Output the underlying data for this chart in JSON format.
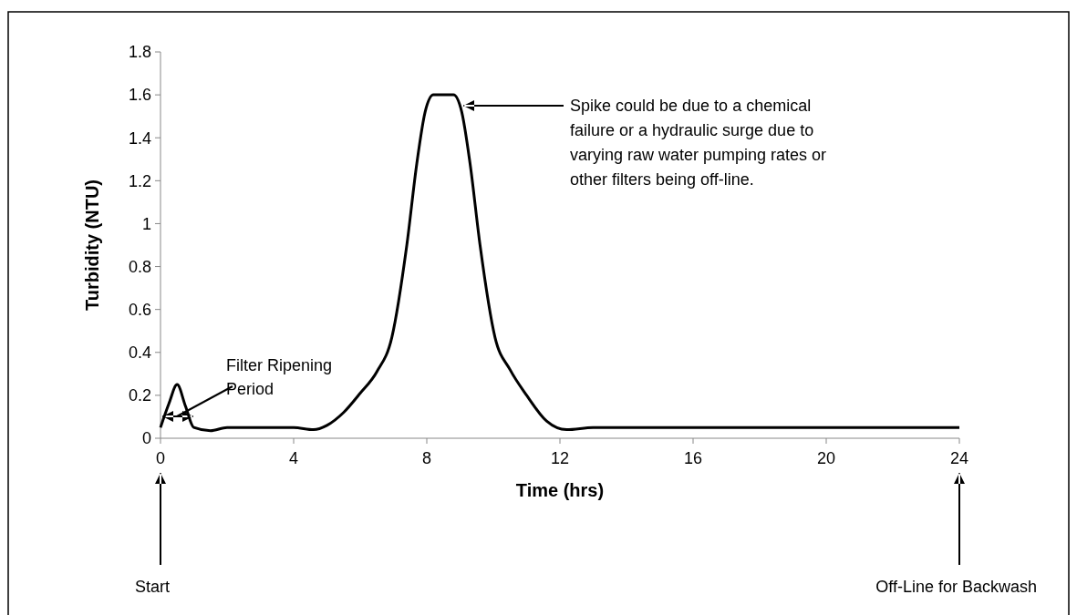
{
  "chart_data": {
    "type": "line",
    "xlabel": "Time (hrs)",
    "ylabel": "Turbidity (NTU)",
    "xlim": [
      0,
      24
    ],
    "xticks": [
      0,
      4,
      8,
      12,
      16,
      20,
      24
    ],
    "ylim": [
      0,
      1.8
    ],
    "yticks": [
      0,
      {
        "value": 0.2,
        "label": "0.2"
      },
      {
        "value": 0.4,
        "label": "0.4"
      },
      {
        "value": 0.6,
        "label": "0.6"
      },
      {
        "value": 0.8,
        "label": "0.8"
      },
      1,
      {
        "value": 1.2,
        "label": "1.2"
      },
      {
        "value": 1.4,
        "label": "1.4"
      },
      {
        "value": 1.6,
        "label": "1.6"
      },
      {
        "value": 1.8,
        "label": "1.8"
      }
    ],
    "grid": false,
    "marker": "none",
    "line_style": "solid",
    "series": [
      {
        "color": "#000000",
        "x": [
          0,
          0.25,
          0.5,
          0.75,
          1,
          1.5,
          2,
          3,
          4,
          4.6,
          5,
          5.5,
          6,
          6.5,
          6.95,
          7.4,
          7.7,
          7.95,
          8.2,
          8.5,
          8.8,
          9.05,
          9.3,
          9.6,
          10.05,
          10.5,
          11,
          11.6,
          12.2,
          13,
          16,
          20,
          24
        ],
        "values": [
          0.05,
          0.16,
          0.25,
          0.15,
          0.05,
          0.035,
          0.05,
          0.05,
          0.05,
          0.04,
          0.06,
          0.12,
          0.21,
          0.31,
          0.47,
          0.9,
          1.28,
          1.52,
          1.6,
          1.6,
          1.6,
          1.52,
          1.28,
          0.9,
          0.47,
          0.32,
          0.2,
          0.08,
          0.04,
          0.05,
          0.05,
          0.05,
          0.05
        ]
      }
    ],
    "annotations": [
      "Filter Ripening Period",
      "Spike could be due to a chemical failure or a hydraulic surge due to varying raw water pumping rates or other filters being off-line.",
      "Start",
      "Off-Line for Backwash"
    ]
  }
}
